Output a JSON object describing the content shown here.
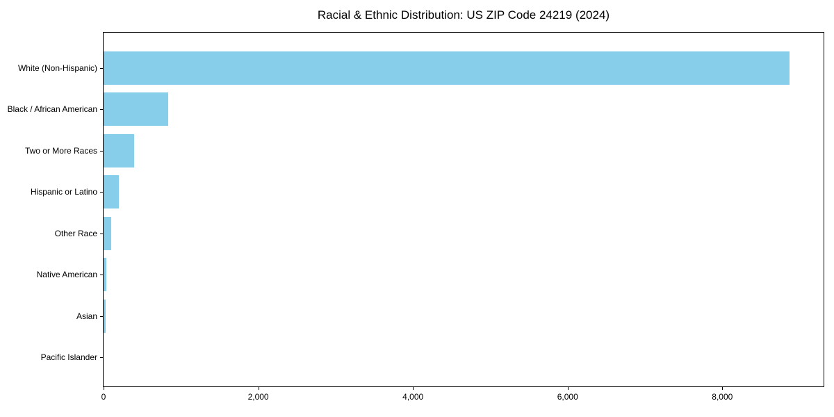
{
  "window": {
    "background_color": "#ffffff"
  },
  "chart_data": {
    "type": "bar",
    "orientation": "horizontal",
    "title": "Racial & Ethnic Distribution: US ZIP Code 24219 (2024)",
    "categories": [
      "White (Non-Hispanic)",
      "Black / African American",
      "Two or More Races",
      "Hispanic or Latino",
      "Other Race",
      "Native American",
      "Asian",
      "Pacific Islander"
    ],
    "values": [
      8865,
      840,
      395,
      197,
      99,
      38,
      31,
      0
    ],
    "xlabel": "",
    "ylabel": "",
    "xlim": [
      0,
      9309
    ],
    "x_ticks": [
      0,
      2000,
      4000,
      6000,
      8000
    ],
    "x_tick_labels": [
      "0",
      "2,000",
      "4,000",
      "6,000",
      "8,000"
    ],
    "grid": false,
    "legend": "none",
    "bar_color": "#87ceeb",
    "axis_color": "#000000",
    "text_color": "#000000"
  }
}
